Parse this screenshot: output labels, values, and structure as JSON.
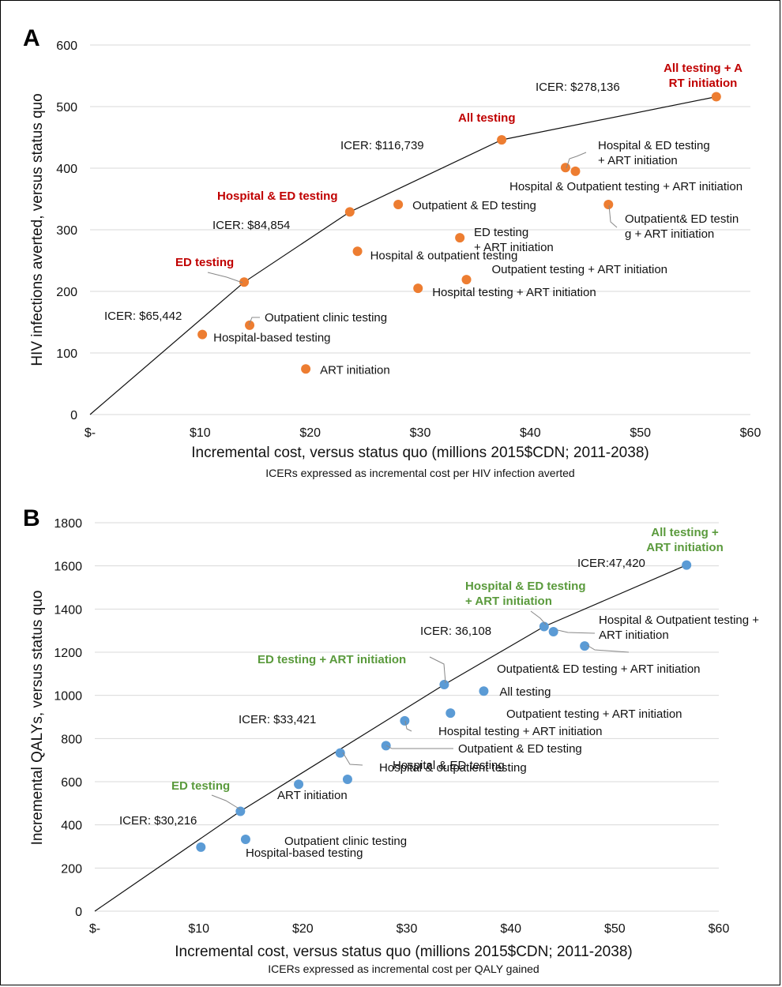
{
  "chart_data": [
    {
      "panel": "A",
      "type": "scatter",
      "xlabel": "Incremental cost, versus status quo  (millions 2015$CDN; 2011-2038)",
      "note": "ICERs expressed as incremental cost per HIV infection averted",
      "ylabel": "HIV infections averted, versus status quo",
      "xlim": [
        0,
        60
      ],
      "ylim": [
        0,
        600
      ],
      "x_ticks": [
        "$-",
        "$10",
        "$20",
        "$30",
        "$40",
        "$50",
        "$60"
      ],
      "y_ticks": [
        "0",
        "100",
        "200",
        "300",
        "400",
        "500",
        "600"
      ],
      "grid": true,
      "point_color": "#ED7D31",
      "highlight_color": "#C00000",
      "points": [
        {
          "label": "Hospital-based testing",
          "x": 10.2,
          "y": 130
        },
        {
          "label": "ED testing",
          "x": 14.0,
          "y": 215,
          "frontier": true
        },
        {
          "label": "Outpatient clinic testing",
          "x": 14.5,
          "y": 145
        },
        {
          "label": "ART initiation",
          "x": 19.6,
          "y": 74
        },
        {
          "label": "Hospital & ED testing",
          "x": 23.6,
          "y": 329,
          "frontier": true
        },
        {
          "label": "Hospital & outpatient testing",
          "x": 24.3,
          "y": 265
        },
        {
          "label": "Outpatient & ED testing",
          "x": 28.0,
          "y": 341
        },
        {
          "label": "Hospital testing + ART initiation",
          "x": 29.8,
          "y": 205
        },
        {
          "label": "ED testing + ART initiation",
          "x": 33.6,
          "y": 287
        },
        {
          "label": "Outpatient testing + ART initiation",
          "x": 34.2,
          "y": 219
        },
        {
          "label": "All testing",
          "x": 37.4,
          "y": 446,
          "frontier": true
        },
        {
          "label": "Hospital & ED testing + ART initiation",
          "x": 43.2,
          "y": 401
        },
        {
          "label": "Hospital & Outpatient testing + ART initiation",
          "x": 44.1,
          "y": 395
        },
        {
          "label": "Outpatient& ED testing + ART initiation",
          "x": 47.1,
          "y": 341
        },
        {
          "label": "All testing + ART initiation",
          "x": 56.9,
          "y": 516,
          "frontier": true
        }
      ],
      "icers": [
        "ICER: $65,442",
        "ICER: $84,854",
        "ICER: $116,739",
        "ICER: $278,136"
      ]
    },
    {
      "panel": "B",
      "type": "scatter",
      "xlabel": "Incremental cost, versus status quo (millions 2015$CDN; 2011-2038)",
      "note": "ICERs expressed as incremental cost per QALY gained",
      "ylabel": "Incremental QALYs, versus status quo",
      "xlim": [
        0,
        60
      ],
      "ylim": [
        0,
        1800
      ],
      "x_ticks": [
        "$-",
        "$10",
        "$20",
        "$30",
        "$40",
        "$50",
        "$60"
      ],
      "y_ticks": [
        "0",
        "200",
        "400",
        "600",
        "800",
        "1000",
        "1200",
        "1400",
        "1600",
        "1800"
      ],
      "grid": true,
      "point_color": "#5B9BD5",
      "highlight_color": "#5A9A3C",
      "points": [
        {
          "label": "Hospital-based testing",
          "x": 10.2,
          "y": 297
        },
        {
          "label": "ED testing",
          "x": 14.0,
          "y": 463,
          "frontier": true
        },
        {
          "label": "Outpatient clinic testing",
          "x": 14.5,
          "y": 333
        },
        {
          "label": "ART initiation",
          "x": 19.6,
          "y": 588
        },
        {
          "label": "Hospital & ED testing",
          "x": 23.6,
          "y": 733
        },
        {
          "label": "Hospital & outpatient testing",
          "x": 24.3,
          "y": 611
        },
        {
          "label": "Outpatient & ED testing",
          "x": 28.0,
          "y": 767
        },
        {
          "label": "Hospital testing + ART initiation",
          "x": 29.8,
          "y": 882
        },
        {
          "label": "ED testing + ART initiation",
          "x": 33.6,
          "y": 1050,
          "frontier": true
        },
        {
          "label": "Outpatient testing + ART initiation",
          "x": 34.2,
          "y": 918
        },
        {
          "label": "All testing",
          "x": 37.4,
          "y": 1020
        },
        {
          "label": "Hospital & ED testing + ART initiation",
          "x": 43.2,
          "y": 1319,
          "frontier": true
        },
        {
          "label": "Hospital & Outpatient testing + ART initiation",
          "x": 44.1,
          "y": 1295
        },
        {
          "label": "Outpatient& ED testing + ART initiation",
          "x": 47.1,
          "y": 1229
        },
        {
          "label": "All testing + ART initiation",
          "x": 56.9,
          "y": 1604,
          "frontier": true
        }
      ],
      "icers": [
        "ICER: $30,216",
        "ICER: $33,421",
        "ICER: 36,108",
        "ICER:47,420"
      ]
    }
  ]
}
